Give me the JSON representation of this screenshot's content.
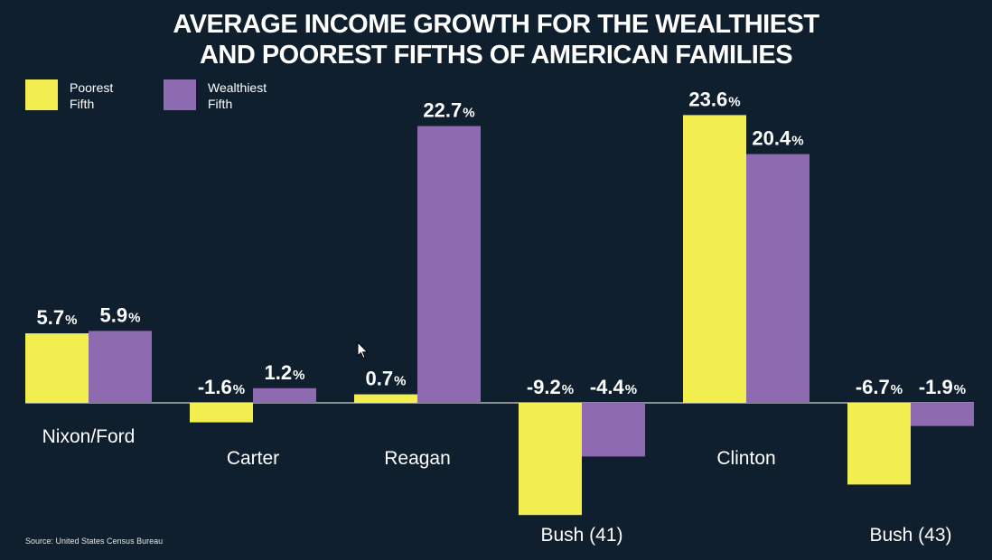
{
  "chart_data": {
    "type": "bar",
    "title_lines": [
      "AVERAGE INCOME GROWTH FOR THE WEALTHIEST",
      "AND POOREST FIFTHS OF AMERICAN FAMILIES"
    ],
    "categories": [
      "Nixon/Ford",
      "Carter",
      "Reagan",
      "Bush (41)",
      "Clinton",
      "Bush (43)"
    ],
    "series": [
      {
        "name": "Poorest Fifth",
        "values": [
          5.7,
          -1.6,
          0.7,
          -9.2,
          23.6,
          -6.7
        ],
        "color": "#f3ee4f"
      },
      {
        "name": "Wealthiest Fifth",
        "values": [
          5.9,
          1.2,
          22.7,
          -4.4,
          20.4,
          -1.9
        ],
        "color": "#8e6bb1"
      }
    ],
    "value_labels": [
      [
        "5.7",
        "-1.6",
        "0.7",
        "-9.2",
        "23.6",
        "-6.7"
      ],
      [
        "5.9",
        "1.2",
        "22.7",
        "-4.4",
        "20.4",
        "-1.9"
      ]
    ],
    "value_suffix": "%",
    "legend": {
      "placement": "top-left",
      "items": [
        {
          "line1": "Poorest",
          "line2": "Fifth",
          "color": "#f3ee4f"
        },
        {
          "line1": "Wealthiest",
          "line2": "Fifth",
          "color": "#8e6bb1"
        }
      ]
    },
    "grid": false,
    "source": "Source: United States Census Bureau"
  }
}
